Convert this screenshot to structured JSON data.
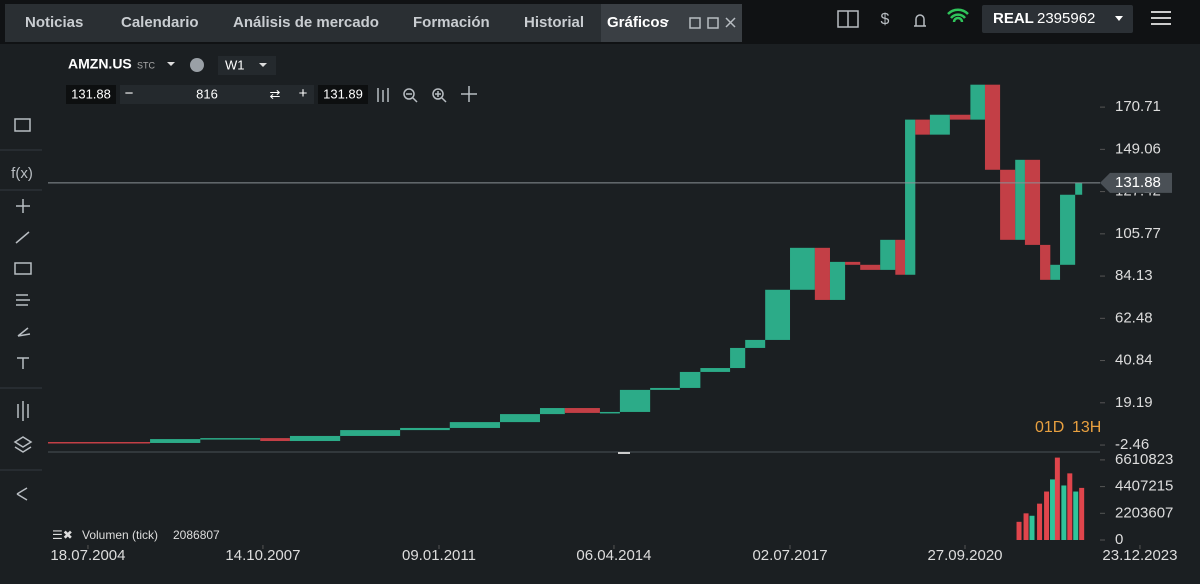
{
  "nav": {
    "tabs": [
      "Noticias",
      "Calendario",
      "Análisis de mercado",
      "Formación",
      "Historial",
      "Gráficos"
    ],
    "account_type": "REAL",
    "balance": "2395962"
  },
  "toolbar": {
    "symbol": "AMZN.US",
    "symbol_tag": "STC",
    "timeframe": "W1",
    "bid": "131.88",
    "volume": "816",
    "ask": "131.89"
  },
  "chart_data": {
    "type": "candlestick",
    "x": [
      2003.8,
      2005.69,
      2006.62,
      2007.73,
      2008.28,
      2009.21,
      2010.32,
      2011.24,
      2012.17,
      2012.91,
      2013.37,
      2014.02,
      2014.39,
      2014.95,
      2015.5,
      2015.88,
      2016.43,
      2016.71,
      2017.08,
      2017.54,
      2018.0,
      2018.28,
      2018.56,
      2018.84,
      2019.21,
      2019.49,
      2019.67,
      2019.86,
      2020.13,
      2020.5,
      2020.88,
      2021.15,
      2021.43,
      2021.71,
      2021.89,
      2022.17,
      2022.36,
      2022.54,
      2022.82,
      2022.95
    ],
    "values": [
      -0.9,
      -1.4,
      0.6,
      1.1,
      -0.4,
      2.2,
      5.2,
      6.3,
      9.3,
      13.4,
      16.5,
      14.0,
      14.5,
      25.8,
      26.8,
      35,
      37,
      47.3,
      51.4,
      77.1,
      98.6,
      71.9,
      91.4,
      89.9,
      87.3,
      102.7,
      84.8,
      164.3,
      156.6,
      166.8,
      164.3,
      182.2,
      138.6,
      102.7,
      143.7,
      100.1,
      82.2,
      89.9,
      125.8,
      132.0
    ],
    "up_color": "#2fc49a",
    "down_color": "#e0454c",
    "xlim": [
      2003.8,
      2023.28
    ],
    "xticks": [
      {
        "value": 2004.54,
        "label": "18.07.2004"
      },
      {
        "value": 2007.78,
        "label": "14.10.2007"
      },
      {
        "value": 2011.04,
        "label": "09.01.2011"
      },
      {
        "value": 2014.28,
        "label": "06.04.2014"
      },
      {
        "value": 2017.54,
        "label": "02.07.2017"
      },
      {
        "value": 2020.78,
        "label": "27.09.2020"
      },
      {
        "value": 2024.02,
        "label": "23.12.2023"
      }
    ],
    "ylim": [
      -5,
      201
    ],
    "yticks": [
      -2.46,
      19.19,
      40.84,
      62.48,
      84.13,
      105.77,
      127.42,
      149.06,
      170.71
    ],
    "current_price": 131.88,
    "countdown": [
      "01D",
      "13H"
    ],
    "volume": {
      "label": "Volumen (tick)",
      "last": 2086807,
      "x": [
        2021.79,
        2021.92,
        2022.03,
        2022.17,
        2022.3,
        2022.41,
        2022.5,
        2022.62,
        2022.73,
        2022.84,
        2022.95
      ],
      "values": [
        1500000,
        2200000,
        2000000,
        3000000,
        4000000,
        5000000,
        6800000,
        4500000,
        5500000,
        4000000,
        4300000
      ],
      "colors": [
        "#e0454c",
        "#e0454c",
        "#2fc49a",
        "#e0454c",
        "#e0454c",
        "#2fc49a",
        "#e0454c",
        "#2fc49a",
        "#e0454c",
        "#2fc49a",
        "#e0454c"
      ],
      "ylim": [
        0,
        7015000
      ],
      "yticks": [
        0,
        2203607,
        4407215,
        6610823
      ]
    }
  }
}
